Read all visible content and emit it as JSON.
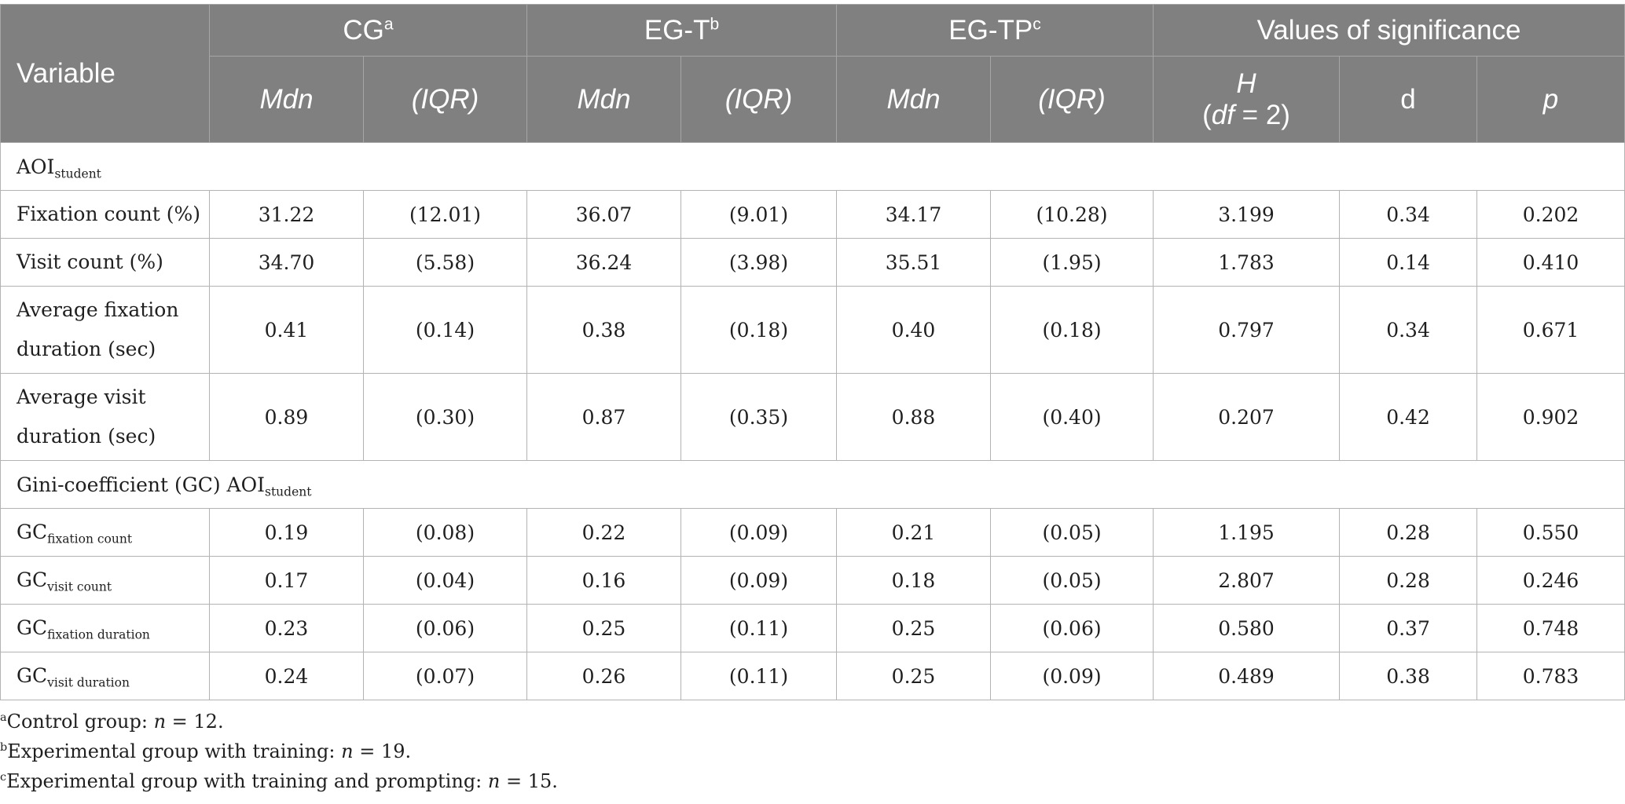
{
  "header": {
    "variable": "Variable",
    "groups": [
      {
        "label": "CG",
        "sup": "a"
      },
      {
        "label": "EG-T",
        "sup": "b"
      },
      {
        "label": "EG-TP",
        "sup": "c"
      },
      {
        "label": "Values of significance",
        "sup": ""
      }
    ],
    "mdn": "Mdn",
    "iqr": "(IQR)",
    "h": "H",
    "df_open": "(",
    "df": "df",
    "df_eq": " = 2)",
    "d": "d",
    "p": "p"
  },
  "sections": [
    {
      "label_main": "AOI",
      "label_sub": "student",
      "rows": [
        {
          "label_main": "Fixation count (%)",
          "label_sub": "",
          "values": [
            "31.22",
            "(12.01)",
            "36.07",
            "(9.01)",
            "34.17",
            "(10.28)",
            "3.199",
            "0.34",
            "0.202"
          ]
        },
        {
          "label_main": "Visit count (%)",
          "label_sub": "",
          "values": [
            "34.70",
            "(5.58)",
            "36.24",
            "(3.98)",
            "35.51",
            "(1.95)",
            "1.783",
            "0.14",
            "0.410"
          ]
        },
        {
          "label_main": "Average fixation duration (sec)",
          "label_sub": "",
          "values": [
            "0.41",
            "(0.14)",
            "0.38",
            "(0.18)",
            "0.40",
            "(0.18)",
            "0.797",
            "0.34",
            "0.671"
          ]
        },
        {
          "label_main": "Average visit duration (sec)",
          "label_sub": "",
          "values": [
            "0.89",
            "(0.30)",
            "0.87",
            "(0.35)",
            "0.88",
            "(0.40)",
            "0.207",
            "0.42",
            "0.902"
          ]
        }
      ]
    },
    {
      "label_main": "Gini-coefficient (GC) AOI",
      "label_sub": "student",
      "rows": [
        {
          "label_main": "GC",
          "label_sub": "fixation count",
          "values": [
            "0.19",
            "(0.08)",
            "0.22",
            "(0.09)",
            "0.21",
            "(0.05)",
            "1.195",
            "0.28",
            "0.550"
          ]
        },
        {
          "label_main": "GC",
          "label_sub": "visit count",
          "values": [
            "0.17",
            "(0.04)",
            "0.16",
            "(0.09)",
            "0.18",
            "(0.05)",
            "2.807",
            "0.28",
            "0.246"
          ]
        },
        {
          "label_main": "GC",
          "label_sub": "fixation duration",
          "values": [
            "0.23",
            "(0.06)",
            "0.25",
            "(0.11)",
            "0.25",
            "(0.06)",
            "0.580",
            "0.37",
            "0.748"
          ]
        },
        {
          "label_main": "GC",
          "label_sub": "visit duration",
          "values": [
            "0.24",
            "(0.07)",
            "0.26",
            "(0.11)",
            "0.25",
            "(0.09)",
            "0.489",
            "0.38",
            "0.783"
          ]
        }
      ]
    }
  ],
  "footnotes": [
    {
      "sup": "a",
      "text": "Control group: ",
      "var": "n",
      "rest": " = 12."
    },
    {
      "sup": "b",
      "text": "Experimental group with training: ",
      "var": "n",
      "rest": " = 19."
    },
    {
      "sup": "c",
      "text": "Experimental group with training and prompting: ",
      "var": "n",
      "rest": " = 15."
    }
  ]
}
